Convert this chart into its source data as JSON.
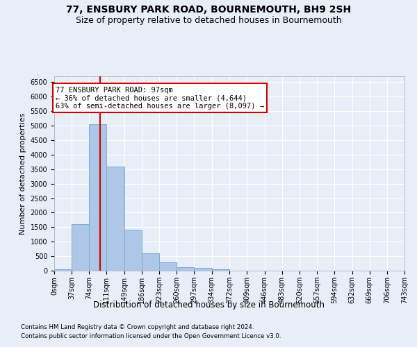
{
  "title": "77, ENSBURY PARK ROAD, BOURNEMOUTH, BH9 2SH",
  "subtitle": "Size of property relative to detached houses in Bournemouth",
  "xlabel": "Distribution of detached houses by size in Bournemouth",
  "ylabel": "Number of detached properties",
  "footnote1": "Contains HM Land Registry data © Crown copyright and database right 2024.",
  "footnote2": "Contains public sector information licensed under the Open Government Licence v3.0.",
  "bin_edges": [
    0,
    37,
    74,
    111,
    149,
    186,
    223,
    260,
    297,
    334,
    372,
    409,
    446,
    483,
    520,
    557,
    594,
    632,
    669,
    706,
    743
  ],
  "bin_labels": [
    "0sqm",
    "37sqm",
    "74sqm",
    "111sqm",
    "149sqm",
    "186sqm",
    "223sqm",
    "260sqm",
    "297sqm",
    "334sqm",
    "372sqm",
    "409sqm",
    "446sqm",
    "483sqm",
    "520sqm",
    "557sqm",
    "594sqm",
    "632sqm",
    "669sqm",
    "706sqm",
    "743sqm"
  ],
  "bar_heights": [
    50,
    1600,
    5050,
    3600,
    1400,
    600,
    280,
    130,
    90,
    50,
    10,
    5,
    0,
    0,
    0,
    0,
    0,
    0,
    0,
    0
  ],
  "bar_color": "#aec6e8",
  "bar_edgecolor": "#7aafd4",
  "property_value": 97,
  "vline_x": 97,
  "vline_color": "#cc0000",
  "annotation_line1": "77 ENSBURY PARK ROAD: 97sqm",
  "annotation_line2": "← 36% of detached houses are smaller (4,644)",
  "annotation_line3": "63% of semi-detached houses are larger (8,097) →",
  "annotation_box_color": "#ffffff",
  "annotation_box_edgecolor": "#cc0000",
  "ylim": [
    0,
    6700
  ],
  "yticks": [
    0,
    500,
    1000,
    1500,
    2000,
    2500,
    3000,
    3500,
    4000,
    4500,
    5000,
    5500,
    6000,
    6500
  ],
  "background_color": "#e8eef7",
  "plot_background": "#e8eef7",
  "grid_color": "#ffffff",
  "title_fontsize": 10,
  "subtitle_fontsize": 9,
  "xlabel_fontsize": 8.5,
  "ylabel_fontsize": 8,
  "tick_fontsize": 7,
  "annotation_fontsize": 7.5
}
